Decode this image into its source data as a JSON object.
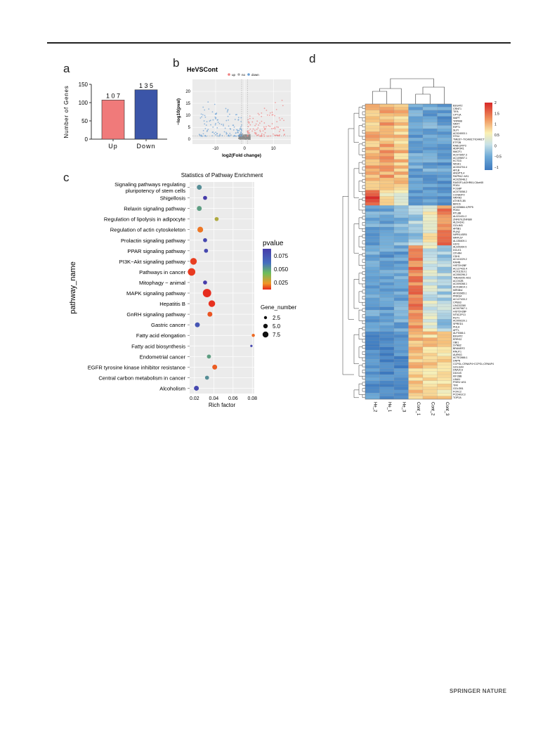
{
  "panels": {
    "a": "a",
    "b": "b",
    "c": "c",
    "d": "d"
  },
  "footer": "SPRINGER NATURE",
  "panel_a": {
    "type": "bar",
    "categories": [
      "Up",
      "Down"
    ],
    "values": [
      107,
      135
    ],
    "labels": [
      "1 0 7",
      "1 3 5"
    ],
    "ylabel": "Number of Genes",
    "yticks": [
      0,
      50,
      100,
      150
    ],
    "ylim": [
      0,
      150
    ],
    "colors": [
      "#f07a7a",
      "#3b55a8"
    ]
  },
  "panel_b": {
    "type": "scatter",
    "title": "HeVSCont",
    "xlabel": "log2(Fold change)",
    "ylabel": "−log10(pval)",
    "legend": [
      {
        "name": "up",
        "color": "#f08080"
      },
      {
        "name": "no",
        "color": "#aaaaaa"
      },
      {
        "name": "down",
        "color": "#6a9fd4"
      }
    ],
    "xticks": [
      -10,
      0,
      10
    ],
    "yticks": [
      0,
      5,
      10,
      15,
      20
    ],
    "xlim": [
      -18,
      16
    ],
    "ylim": [
      -2,
      25
    ]
  },
  "chart_data": {
    "type": "scatter",
    "title": "Statistics of Pathway Enrichment",
    "xlabel": "Rich factor",
    "ylabel": "pathway_name",
    "xlim": [
      0.015,
      0.082
    ],
    "xticks": [
      "0.02",
      "0.04",
      "0.06",
      "0.08"
    ],
    "xtick_values": [
      0.02,
      0.04,
      0.06,
      0.08
    ],
    "color_legend_title": "pvalue",
    "color_legend_ticks": [
      "0.075",
      "0.050",
      "0.025"
    ],
    "size_legend_title": "Gene_number",
    "size_legend_ticks": [
      "2.5",
      "5.0",
      "7.5"
    ],
    "pathways": [
      {
        "name": "Signaling pathways regulating\npluripotency of stem cells",
        "rich": 0.025,
        "p": 0.06,
        "genes": 4
      },
      {
        "name": "Shigellosis",
        "rich": 0.031,
        "p": 0.09,
        "genes": 3
      },
      {
        "name": "Relaxin signaling pathway",
        "rich": 0.025,
        "p": 0.055,
        "genes": 4
      },
      {
        "name": "Regulation of lipolysis in adipocyte",
        "rich": 0.043,
        "p": 0.035,
        "genes": 3
      },
      {
        "name": "Regulation of actin cytoskeleton",
        "rich": 0.026,
        "p": 0.018,
        "genes": 5
      },
      {
        "name": "Prolactin signaling pathway",
        "rich": 0.031,
        "p": 0.085,
        "genes": 3
      },
      {
        "name": "PPAR signaling pathway",
        "rich": 0.032,
        "p": 0.085,
        "genes": 3
      },
      {
        "name": "PI3K−Akt signaling pathway",
        "rich": 0.019,
        "p": 0.005,
        "genes": 6
      },
      {
        "name": "Pathways in cancer",
        "rich": 0.017,
        "p": 0.004,
        "genes": 7
      },
      {
        "name": "Mitophagy − animal",
        "rich": 0.031,
        "p": 0.09,
        "genes": 3
      },
      {
        "name": "MAPK signaling pathway",
        "rich": 0.033,
        "p": 0.001,
        "genes": 8
      },
      {
        "name": "Hepatitis B",
        "rich": 0.038,
        "p": 0.002,
        "genes": 6
      },
      {
        "name": "GnRH signaling pathway",
        "rich": 0.036,
        "p": 0.01,
        "genes": 4
      },
      {
        "name": "Gastric cancer",
        "rich": 0.023,
        "p": 0.08,
        "genes": 4
      },
      {
        "name": "Fatty acid elongation",
        "rich": 0.081,
        "p": 0.015,
        "genes": 2
      },
      {
        "name": "Fatty acid biosynthesis",
        "rich": 0.079,
        "p": 0.085,
        "genes": 1
      },
      {
        "name": "Endometrial cancer",
        "rich": 0.035,
        "p": 0.055,
        "genes": 3
      },
      {
        "name": "EGFR tyrosine kinase inhibitor resistance",
        "rich": 0.041,
        "p": 0.012,
        "genes": 4
      },
      {
        "name": "Central carbon metabolism in cancer",
        "rich": 0.033,
        "p": 0.06,
        "genes": 3
      },
      {
        "name": "Alcoholism",
        "rich": 0.022,
        "p": 0.085,
        "genes": 4
      }
    ]
  },
  "panel_d": {
    "type": "heatmap",
    "columns": [
      "He_2",
      "He_1",
      "He_3",
      "Cont_1",
      "Cont_2",
      "Cont_3"
    ],
    "scale_ticks": [
      "2",
      "1.5",
      "1",
      "0.5",
      "0",
      "−0.5",
      "−1"
    ],
    "genes": [
      "B3GAT2",
      "CRNT1",
      "TIFA",
      "CPT1A",
      "MAPT",
      "YRPAIB",
      "NR4T",
      "RIPT1",
      "SLPI",
      "AC024003.1",
      "STK4",
      "TMED7−TICAM2;TICAM2;TMED7",
      "ETF2B",
      "RAB11FIP3",
      "ADIPOR1",
      "MACF1",
      "AC073957.3",
      "AC109697.1",
      "KCTD3",
      "WISK1",
      "AC004704.4",
      "APLB",
      "ANGPTL4",
      "PAPPA2−AS1",
      "AC025048.2",
      "RASSF1;AOHR61;C8orf45",
      "PDE4",
      "FCGBP",
      "AC073058.2",
      "CCNA2P2",
      "NRXN3",
      "ATXN7L3B",
      "BIRC6",
      "AC005884.4;PIP5",
      "PDK4",
      "RTL8B",
      "AL021431.2",
      "ZNF679;ZNF680",
      "ALDH1A1",
      "GOLIM3",
      "AP5B1",
      "PLIN2",
      "NIPR14SR5",
      "MRPL57",
      "AL135409.1",
      "H1F3",
      "AL025264.5",
      "DCLK1",
      "OTHR4",
      "CDH1",
      "AC110229.2",
      "RAI4B",
      "HIST2H2BF",
      "AC127433.4",
      "AC011510.1",
      "AC050296.2",
      "TMEM205−AS1",
      "ACOX2B",
      "AC009268.1",
      "AC018814.1",
      "MIR4lhd",
      "AF003965.1",
      "PRRG4",
      "AC127433.2",
      "CPEB3",
      "LINC02280",
      "AC007967.1",
      "HIST2H2BF",
      "NT5C2P13",
      "RUT1",
      "AC009220.1",
      "SPRED1",
      "PHLA",
      "APTL",
      "ALF5366.1",
      "B3GAT2",
      "ERRG2",
      "OBI1",
      "SYNB2",
      "BRANRF2",
      "RNUT1",
      "AURKG",
      "ACTE2866.1",
      "DNPN",
      "CCPGL;CRNAP4+CCPGL;CRNAP4",
      "GOLGA4",
      "DNAJC3",
      "DDX4S",
      "KIF2BB",
      "LIMA1",
      "PSEN−AS1",
      "TFR",
      "GOLGB1",
      "FOXC2",
      "PCDHGC3",
      "TOP2A"
    ]
  }
}
